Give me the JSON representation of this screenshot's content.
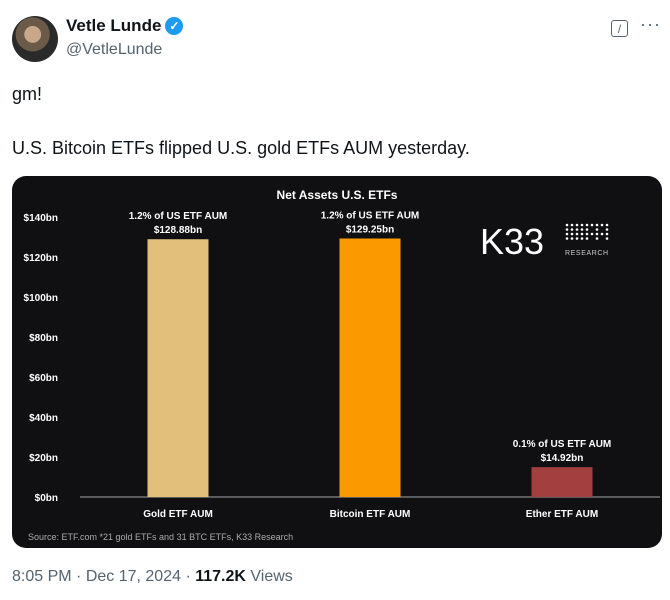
{
  "author": {
    "name": "Vetle Lunde",
    "handle": "@VetleLunde",
    "verified": true
  },
  "actions": {
    "grok_icon": "grok-icon",
    "more_label": "···"
  },
  "tweet": {
    "line1": "gm!",
    "line2": "U.S. Bitcoin ETFs flipped U.S. gold ETFs AUM yesterday."
  },
  "logo": {
    "text": "K33",
    "sub": "RESEARCH"
  },
  "chart_data": {
    "type": "bar",
    "title": "Net Assets U.S. ETFs",
    "categories": [
      "Gold ETF AUM",
      "Bitcoin ETF AUM",
      "Ether ETF AUM"
    ],
    "values": [
      128.88,
      129.25,
      14.92
    ],
    "colors": [
      "#e2c07c",
      "#fb9a00",
      "#a33f3f"
    ],
    "annotations": [
      {
        "share": "1.2% of US ETF AUM",
        "value": "$128.88bn"
      },
      {
        "share": "1.2% of US ETF AUM",
        "value": "$129.25bn"
      },
      {
        "share": "0.1% of US ETF AUM",
        "value": "$14.92bn"
      }
    ],
    "yticks": [
      "$0bn",
      "$20bn",
      "$40bn",
      "$60bn",
      "$80bn",
      "$100bn",
      "$120bn",
      "$140bn"
    ],
    "ylim": [
      0,
      140
    ],
    "grid": false,
    "source": "Source: ETF.com *21 gold ETFs and 31 BTC ETFs, K33 Research"
  },
  "footer": {
    "time": "8:05 PM",
    "date": "Dec 17, 2024",
    "views_count": "117.2K",
    "views_label": "Views"
  }
}
